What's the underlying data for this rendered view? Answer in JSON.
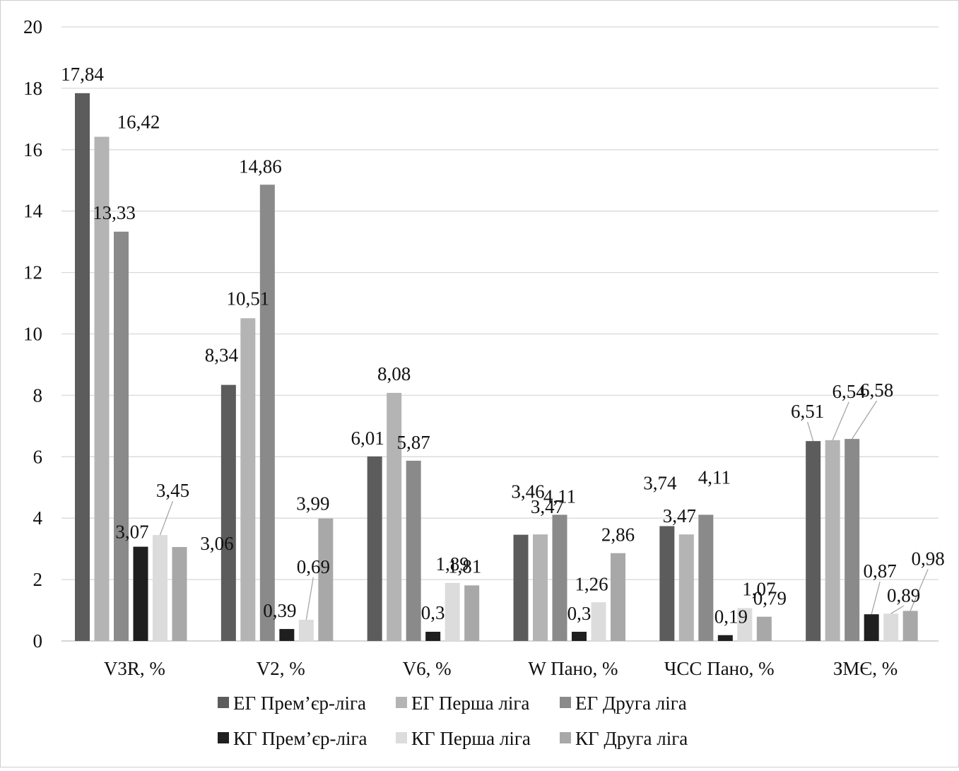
{
  "chart_data": {
    "type": "bar",
    "title": "",
    "xlabel": "",
    "ylabel": "",
    "ylim": [
      0,
      20
    ],
    "yticks": [
      0,
      2,
      4,
      6,
      8,
      10,
      12,
      14,
      16,
      18,
      20
    ],
    "grid": true,
    "legend_position": "bottom",
    "categories": [
      "V3R, %",
      "V2, %",
      "V6,  %",
      "W Пано, %",
      "ЧСС Пано, %",
      "ЗМЄ, %"
    ],
    "series": [
      {
        "name": "ЕГ Прем’єр-ліга",
        "color": "#5c5c5c",
        "values": [
          17.84,
          8.34,
          6.01,
          3.46,
          3.74,
          6.51
        ],
        "labels": [
          "17,84",
          "8,34",
          "6,01",
          "3,46",
          "3,74",
          "6,51"
        ]
      },
      {
        "name": "ЕГ Перша ліга",
        "color": "#b4b4b4",
        "values": [
          16.42,
          10.51,
          8.08,
          3.47,
          3.47,
          6.54
        ],
        "labels": [
          "16,42",
          "10,51",
          "8,08",
          "3,47",
          "3,47",
          "6,54"
        ]
      },
      {
        "name": "ЕГ Друга ліга",
        "color": "#8a8a8a",
        "values": [
          13.33,
          14.86,
          5.87,
          4.11,
          4.11,
          6.58
        ],
        "labels": [
          "13,33",
          "14,86",
          "5,87",
          "4,11",
          "4,11",
          "6,58"
        ]
      },
      {
        "name": "КГ Прем’єр-ліга",
        "color": "#1f1f1f",
        "values": [
          3.07,
          0.39,
          0.3,
          0.3,
          0.19,
          0.87
        ],
        "labels": [
          "3,07",
          "0,39",
          "0,3",
          "0,3",
          "0,19",
          "0,87"
        ]
      },
      {
        "name": "КГ Перша ліга",
        "color": "#dcdcdc",
        "values": [
          3.45,
          0.69,
          1.89,
          1.26,
          1.07,
          0.89
        ],
        "labels": [
          "3,45",
          "0,69",
          "1,89",
          "1,26",
          "1,07",
          "0,89"
        ]
      },
      {
        "name": "КГ Друга ліга",
        "color": "#a8a8a8",
        "values": [
          3.06,
          3.99,
          1.81,
          2.86,
          0.79,
          0.98
        ],
        "labels": [
          "3,06",
          "3,99",
          "1,81",
          "2,86",
          "0,79",
          "0,98"
        ]
      }
    ]
  }
}
